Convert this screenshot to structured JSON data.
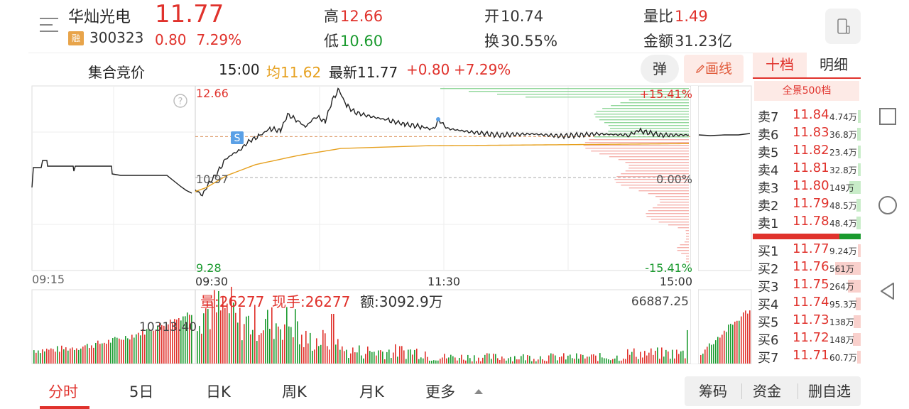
{
  "header": {
    "name": "华灿光电",
    "code": "300323",
    "rong": "融",
    "price": "11.77",
    "change": "0.80",
    "change_pct": "7.29%",
    "high_label": "高",
    "high": "12.66",
    "low_label": "低",
    "low": "10.60",
    "open_label": "开",
    "open": "10.74",
    "turnover_label": "换",
    "turnover": "30.55%",
    "vol_ratio_label": "量比",
    "vol_ratio": "1.49",
    "amount_label": "金额",
    "amount": "31.23亿"
  },
  "info_bar": {
    "auction": "集合竞价",
    "time": "15:00",
    "avg": "均11.62",
    "latest": "最新11.77",
    "chg": "+0.80",
    "pct": "+7.29%",
    "danmu": "弹",
    "draw": "画线"
  },
  "chart_data": {
    "type": "line",
    "price_axis": {
      "top": "12.66",
      "mid": "10.97",
      "bottom": "9.28"
    },
    "pct_axis": {
      "top": "+15.41%",
      "mid": "0.00%",
      "bottom": "-15.41%"
    },
    "time_labels": [
      "09:15",
      "09:30",
      "11:30",
      "15:00"
    ],
    "volume_info": {
      "vol": "量:26277",
      "hand": "现手:26277",
      "amount": "额:3092.9万"
    },
    "volume_max": "66887.25",
    "auction_vol_label": "10313.40",
    "marker": "S",
    "colors": {
      "price": "#222222",
      "avg": "#e6a01e",
      "up": "#e0322c",
      "down": "#1a9a2e"
    }
  },
  "order_book": {
    "tabs": [
      "十档",
      "明细"
    ],
    "full_label": "全景500档",
    "asks": [
      {
        "label": "卖7",
        "price": "11.84",
        "vol": "4.74万",
        "bar": 0.05
      },
      {
        "label": "卖6",
        "price": "11.83",
        "vol": "36.8万",
        "bar": 0.15
      },
      {
        "label": "卖5",
        "price": "11.82",
        "vol": "23.4万",
        "bar": 0.1
      },
      {
        "label": "卖4",
        "price": "11.81",
        "vol": "32.8万",
        "bar": 0.12
      },
      {
        "label": "卖3",
        "price": "11.80",
        "vol": "149万",
        "bar": 0.45
      },
      {
        "label": "卖2",
        "price": "11.79",
        "vol": "48.5万",
        "bar": 0.18
      },
      {
        "label": "卖1",
        "price": "11.78",
        "vol": "48.4万",
        "bar": 0.18
      }
    ],
    "bids": [
      {
        "label": "买1",
        "price": "11.77",
        "vol": "9.24万",
        "bar": 0.05
      },
      {
        "label": "买2",
        "price": "11.76",
        "vol": "561万",
        "bar": 1.0
      },
      {
        "label": "买3",
        "price": "11.75",
        "vol": "264万",
        "bar": 0.5
      },
      {
        "label": "买4",
        "price": "11.74",
        "vol": "95.3万",
        "bar": 0.2
      },
      {
        "label": "买5",
        "price": "11.73",
        "vol": "138万",
        "bar": 0.28
      },
      {
        "label": "买6",
        "price": "11.72",
        "vol": "148万",
        "bar": 0.3
      },
      {
        "label": "买7",
        "price": "11.71",
        "vol": "60.7万",
        "bar": 0.14
      }
    ],
    "buy_ratio": 0.8
  },
  "bottom_nav": {
    "tabs": [
      "分时",
      "5日",
      "日K",
      "周K",
      "月K",
      "更多"
    ],
    "buttons": [
      "筹码",
      "资金",
      "删自选"
    ]
  }
}
